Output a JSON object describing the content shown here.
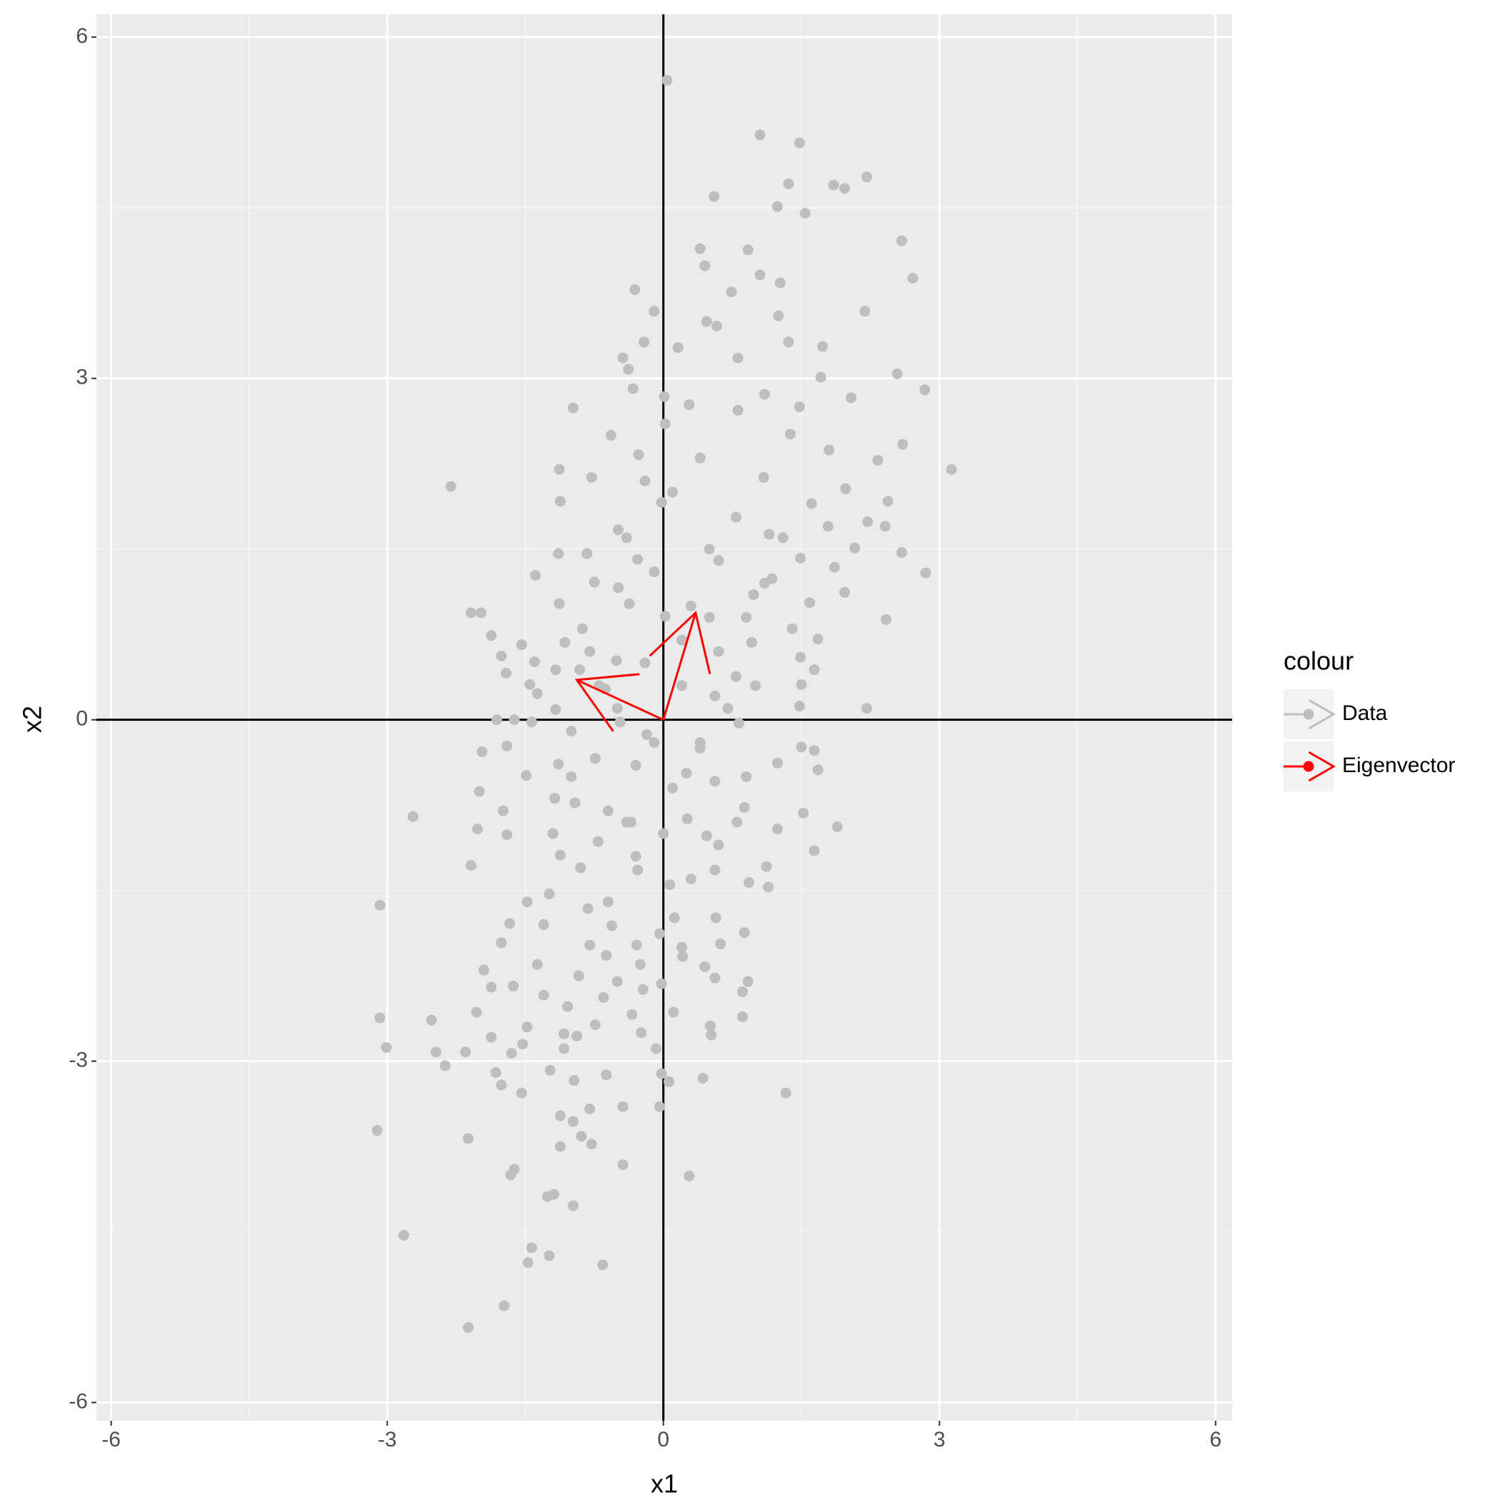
{
  "chart_data": {
    "type": "scatter",
    "x_label": "x1",
    "y_label": "x2",
    "legend_title": "colour",
    "legend": "right",
    "grid": true,
    "xlim": [
      -6.16,
      6.18
    ],
    "ylim": [
      -6.16,
      6.2
    ],
    "xticks": [
      -6,
      -3,
      0,
      3,
      6
    ],
    "yticks": [
      -6,
      -3,
      0,
      3,
      6
    ],
    "hline": 0,
    "vline": 0,
    "series": [
      {
        "name": "Data",
        "color": "#bebebe",
        "x": [
          0.04,
          1.05,
          1.48,
          2.21,
          1.36,
          1.85,
          1.97,
          0.55,
          1.24,
          1.54,
          2.59,
          0.4,
          0.92,
          0.45,
          2.71,
          1.05,
          1.27,
          -0.31,
          0.74,
          2.19,
          -0.1,
          1.25,
          0.47,
          0.58,
          -0.21,
          1.36,
          0.16,
          1.73,
          -0.44,
          0.81,
          -0.38,
          2.54,
          1.71,
          2.84,
          1.1,
          2.04,
          -0.33,
          0.01,
          -0.98,
          0.28,
          1.48,
          0.81,
          0.02,
          -0.57,
          1.38,
          2.6,
          -0.27,
          1.8,
          2.33,
          -2.31,
          -1.13,
          3.13,
          -0.78,
          1.09,
          1.98,
          -1.12,
          -0.02,
          2.44,
          1.61,
          0.79,
          2.22,
          2.41,
          -0.49,
          1.15,
          1.79,
          2.08,
          -1.14,
          2.59,
          -0.83,
          1.49,
          0.6,
          -0.28,
          -1.39,
          2.85,
          1.86,
          1.18,
          -0.75,
          -0.49,
          1.97,
          0.98,
          -1.13,
          1.59,
          -0.37,
          2.42,
          -2.09,
          -1.98,
          0.02,
          -0.88,
          -1.87,
          -1.54,
          -1.07,
          1.68,
          0.96,
          -1.76,
          -0.51,
          1.49,
          -1.4,
          -1.17,
          1.64,
          -0.91,
          -1.71,
          0.79,
          -1.45,
          -0.63,
          1.5,
          -1.37,
          0.56,
          2.21,
          -1.17,
          1.48,
          -1.81,
          -1.62,
          -1.43,
          -0.47,
          0.82,
          -1.0,
          -0.18,
          -1.7,
          1.5,
          -1.97,
          1.64,
          0.4,
          -0.74,
          1.24,
          -1.14,
          1.68,
          -1.49,
          0.25,
          -2.0,
          -1.18,
          0.56,
          -2.72,
          -1.74,
          0.88,
          1.52,
          -0.96,
          -0.35,
          0.26,
          -2.02,
          1.89,
          1.24,
          -1.7,
          -0.71,
          0.47,
          1.64,
          -1.12,
          -2.09,
          1.12,
          -0.28,
          0.56,
          0.93,
          1.14,
          -1.24,
          0.07,
          -3.08,
          -1.48,
          -0.82,
          0.57,
          0.12,
          -1.67,
          -0.56,
          0.88,
          -0.04,
          -1.76,
          -0.8,
          -0.29,
          0.62,
          -1.95,
          -1.37,
          -0.62,
          0.21,
          0.45,
          -0.25,
          -1.63,
          0.92,
          -1.87,
          -0.92,
          0.56,
          -1.3,
          -0.22,
          -0.02,
          0.86,
          -0.65,
          -1.04,
          0.11,
          0.86,
          -2.03,
          -3.08,
          -2.52,
          -0.34,
          0.51,
          -1.48,
          -0.74,
          -1.87,
          -1.08,
          0.52,
          -0.24,
          -1.53,
          -0.94,
          -3.01,
          -2.47,
          -2.15,
          -1.65,
          -1.08,
          -0.08,
          -2.37,
          -1.23,
          -0.02,
          -1.82,
          -0.62,
          -0.97,
          0.43,
          -1.76,
          0.06,
          1.33,
          -1.54,
          -0.44,
          -0.04,
          -0.8,
          -1.12,
          -0.98,
          -3.11,
          -0.89,
          -2.12,
          -0.78,
          -1.12,
          -0.44,
          -1.62,
          -1.66,
          0.28,
          -1.19,
          -1.26,
          -0.98,
          -2.82,
          -1.43,
          -1.24,
          -1.47,
          -0.66,
          -1.73,
          -2.12,
          -0.2,
          0.2,
          -0.5,
          0.4,
          0.1,
          -0.3,
          0.6,
          -0.6,
          0.3,
          -0.1,
          0.5,
          -0.4,
          0.9,
          1.1,
          -0.8,
          0.0,
          -0.3,
          0.3,
          -0.9,
          0.8,
          -0.6,
          0.2,
          -0.5,
          1.0,
          0.7,
          -1.0,
          0.1,
          0.4,
          -0.2,
          1.3,
          -1.2,
          0.5,
          -0.1,
          0.2,
          -0.7,
          0.9,
          -0.4,
          0.6,
          1.4,
          -1.3
        ],
        "values": [
          5.62,
          5.14,
          5.07,
          4.77,
          4.71,
          4.7,
          4.67,
          4.6,
          4.51,
          4.45,
          4.21,
          4.14,
          4.13,
          3.99,
          3.88,
          3.91,
          3.84,
          3.78,
          3.76,
          3.59,
          3.59,
          3.55,
          3.5,
          3.46,
          3.32,
          3.32,
          3.27,
          3.28,
          3.18,
          3.18,
          3.08,
          3.04,
          3.01,
          2.9,
          2.86,
          2.83,
          2.91,
          2.84,
          2.74,
          2.77,
          2.75,
          2.72,
          2.6,
          2.5,
          2.51,
          2.42,
          2.33,
          2.37,
          2.28,
          2.05,
          2.2,
          2.2,
          2.13,
          2.13,
          2.03,
          1.92,
          1.91,
          1.92,
          1.9,
          1.78,
          1.74,
          1.7,
          1.67,
          1.63,
          1.7,
          1.51,
          1.46,
          1.47,
          1.46,
          1.42,
          1.4,
          1.41,
          1.27,
          1.29,
          1.34,
          1.24,
          1.21,
          1.16,
          1.12,
          1.1,
          1.02,
          1.03,
          1.02,
          0.88,
          0.94,
          0.94,
          0.91,
          0.8,
          0.74,
          0.66,
          0.68,
          0.71,
          0.68,
          0.56,
          0.52,
          0.55,
          0.51,
          0.44,
          0.44,
          0.44,
          0.41,
          0.38,
          0.31,
          0.27,
          0.31,
          0.23,
          0.21,
          0.1,
          0.09,
          0.12,
          0.0,
          0.0,
          -0.02,
          -0.02,
          -0.03,
          -0.1,
          -0.13,
          -0.23,
          -0.24,
          -0.28,
          -0.27,
          -0.25,
          -0.34,
          -0.38,
          -0.39,
          -0.44,
          -0.49,
          -0.47,
          -0.63,
          -0.69,
          -0.54,
          -0.85,
          -0.8,
          -0.77,
          -0.82,
          -0.73,
          -0.9,
          -0.87,
          -0.96,
          -0.94,
          -0.96,
          -1.01,
          -1.07,
          -1.02,
          -1.15,
          -1.19,
          -1.28,
          -1.29,
          -1.32,
          -1.32,
          -1.43,
          -1.47,
          -1.53,
          -1.45,
          -1.63,
          -1.6,
          -1.66,
          -1.74,
          -1.74,
          -1.79,
          -1.81,
          -1.87,
          -1.88,
          -1.96,
          -1.98,
          -1.98,
          -1.97,
          -2.2,
          -2.15,
          -2.07,
          -2.08,
          -2.17,
          -2.15,
          -2.34,
          -2.3,
          -2.35,
          -2.25,
          -2.27,
          -2.42,
          -2.37,
          -2.32,
          -2.39,
          -2.44,
          -2.52,
          -2.57,
          -2.61,
          -2.57,
          -2.62,
          -2.64,
          -2.59,
          -2.69,
          -2.7,
          -2.68,
          -2.79,
          -2.76,
          -2.77,
          -2.75,
          -2.85,
          -2.78,
          -2.88,
          -2.92,
          -2.92,
          -2.93,
          -2.89,
          -2.89,
          -3.04,
          -3.08,
          -3.11,
          -3.1,
          -3.12,
          -3.17,
          -3.15,
          -3.21,
          -3.18,
          -3.28,
          -3.28,
          -3.4,
          -3.4,
          -3.42,
          -3.48,
          -3.53,
          -3.61,
          -3.66,
          -3.68,
          -3.73,
          -3.75,
          -3.91,
          -3.95,
          -4.0,
          -4.01,
          -4.17,
          -4.19,
          -4.27,
          -4.53,
          -4.64,
          -4.71,
          -4.77,
          -4.79,
          -5.15,
          -5.34,
          0.5,
          0.3,
          0.1,
          -0.2,
          -0.6,
          -0.4,
          0.6,
          -0.8,
          1.0,
          1.3,
          1.5,
          1.6,
          0.9,
          1.2,
          0.6,
          -1.0,
          -1.2,
          -1.4,
          -1.3,
          -0.9,
          -1.6,
          -2.0,
          -2.3,
          0.3,
          0.1,
          -0.5,
          2.0,
          2.3,
          2.1,
          1.6,
          -1.0,
          0.9,
          -0.2,
          0.7,
          0.3,
          -0.5,
          -0.9,
          -1.1,
          0.8,
          -1.8
        ]
      },
      {
        "name": "Eigenvector",
        "color": "#ff0000",
        "x0": [
          0,
          0
        ],
        "y0": [
          0,
          0
        ],
        "x": [
          0.35,
          -0.94
        ],
        "values": [
          0.94,
          0.35
        ]
      }
    ]
  }
}
